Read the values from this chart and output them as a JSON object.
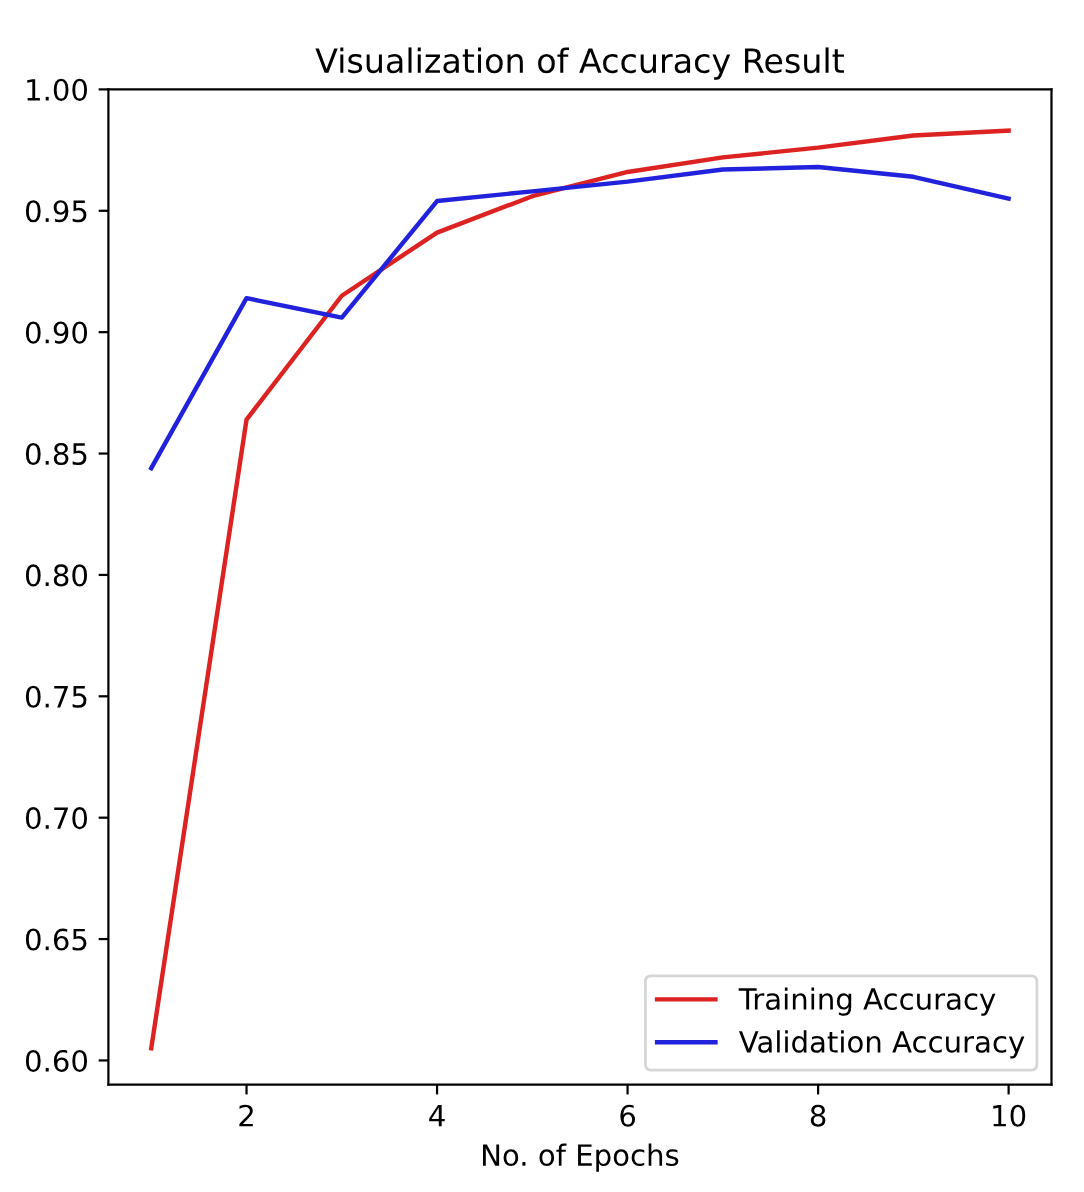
{
  "chart_data": {
    "type": "line",
    "title": "Visualization of Accuracy Result",
    "xlabel": "No. of Epochs",
    "x": [
      1,
      2,
      3,
      4,
      5,
      6,
      7,
      8,
      9,
      10
    ],
    "series": [
      {
        "name": "Training Accuracy",
        "color": "#dd2222",
        "values": [
          0.605,
          0.864,
          0.915,
          0.941,
          0.956,
          0.966,
          0.972,
          0.976,
          0.981,
          0.983
        ]
      },
      {
        "name": "Validation Accuracy",
        "color": "#2222dd",
        "values": [
          0.844,
          0.914,
          0.906,
          0.954,
          0.958,
          0.962,
          0.967,
          0.968,
          0.964,
          0.955
        ]
      }
    ],
    "xlim": [
      0.55,
      10.45
    ],
    "ylim": [
      0.59,
      1.0
    ],
    "xticks": [
      2,
      4,
      6,
      8,
      10
    ],
    "yticks": [
      {
        "value": 0.6,
        "label": "0.60"
      },
      {
        "value": 0.65,
        "label": "0.65"
      },
      {
        "value": 0.7,
        "label": "0.70"
      },
      {
        "value": 0.75,
        "label": "0.75"
      },
      {
        "value": 0.8,
        "label": "0.80"
      },
      {
        "value": 0.85,
        "label": "0.85"
      },
      {
        "value": 0.9,
        "label": "0.90"
      },
      {
        "value": 0.95,
        "label": "0.95"
      },
      {
        "value": 1.0,
        "label": "1.00"
      }
    ],
    "legend": "bottom right",
    "grid": false,
    "marker": "none",
    "line_style": "solid"
  }
}
